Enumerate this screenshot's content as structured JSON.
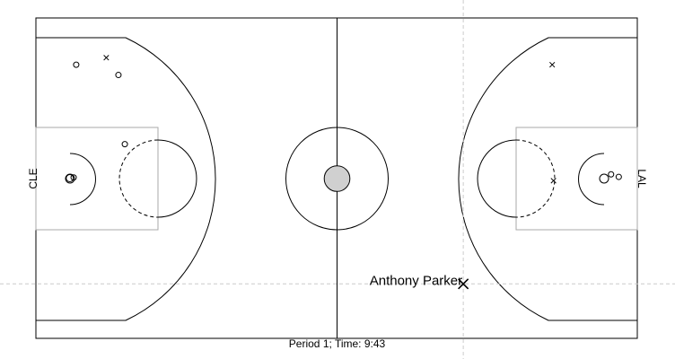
{
  "teams": {
    "left": "CLE",
    "right": "LAL"
  },
  "caption": "Period 1; Time: 9:43",
  "highlight": {
    "name": "Anthony Parker"
  },
  "chart_data": {
    "type": "scatter",
    "x_range": [
      0,
      94
    ],
    "y_range": [
      0,
      50
    ],
    "ball": {
      "x": 5.3,
      "y": 25
    },
    "highlight": {
      "name": "Anthony Parker",
      "x": 66.8,
      "y": 41.5
    },
    "series": [
      {
        "marker": "circle",
        "points": [
          {
            "x": 6.3,
            "y": 7.3
          },
          {
            "x": 12.9,
            "y": 8.9
          },
          {
            "x": 13.9,
            "y": 19.7
          },
          {
            "x": 5.9,
            "y": 24.9
          },
          {
            "x": 91.1,
            "y": 24.8
          },
          {
            "x": 89.9,
            "y": 24.4
          }
        ]
      },
      {
        "marker": "x",
        "points": [
          {
            "x": 11.0,
            "y": 6.2
          },
          {
            "x": 80.7,
            "y": 7.3
          },
          {
            "x": 80.9,
            "y": 25.4
          },
          {
            "x": 66.8,
            "y": 41.5
          }
        ]
      }
    ]
  }
}
